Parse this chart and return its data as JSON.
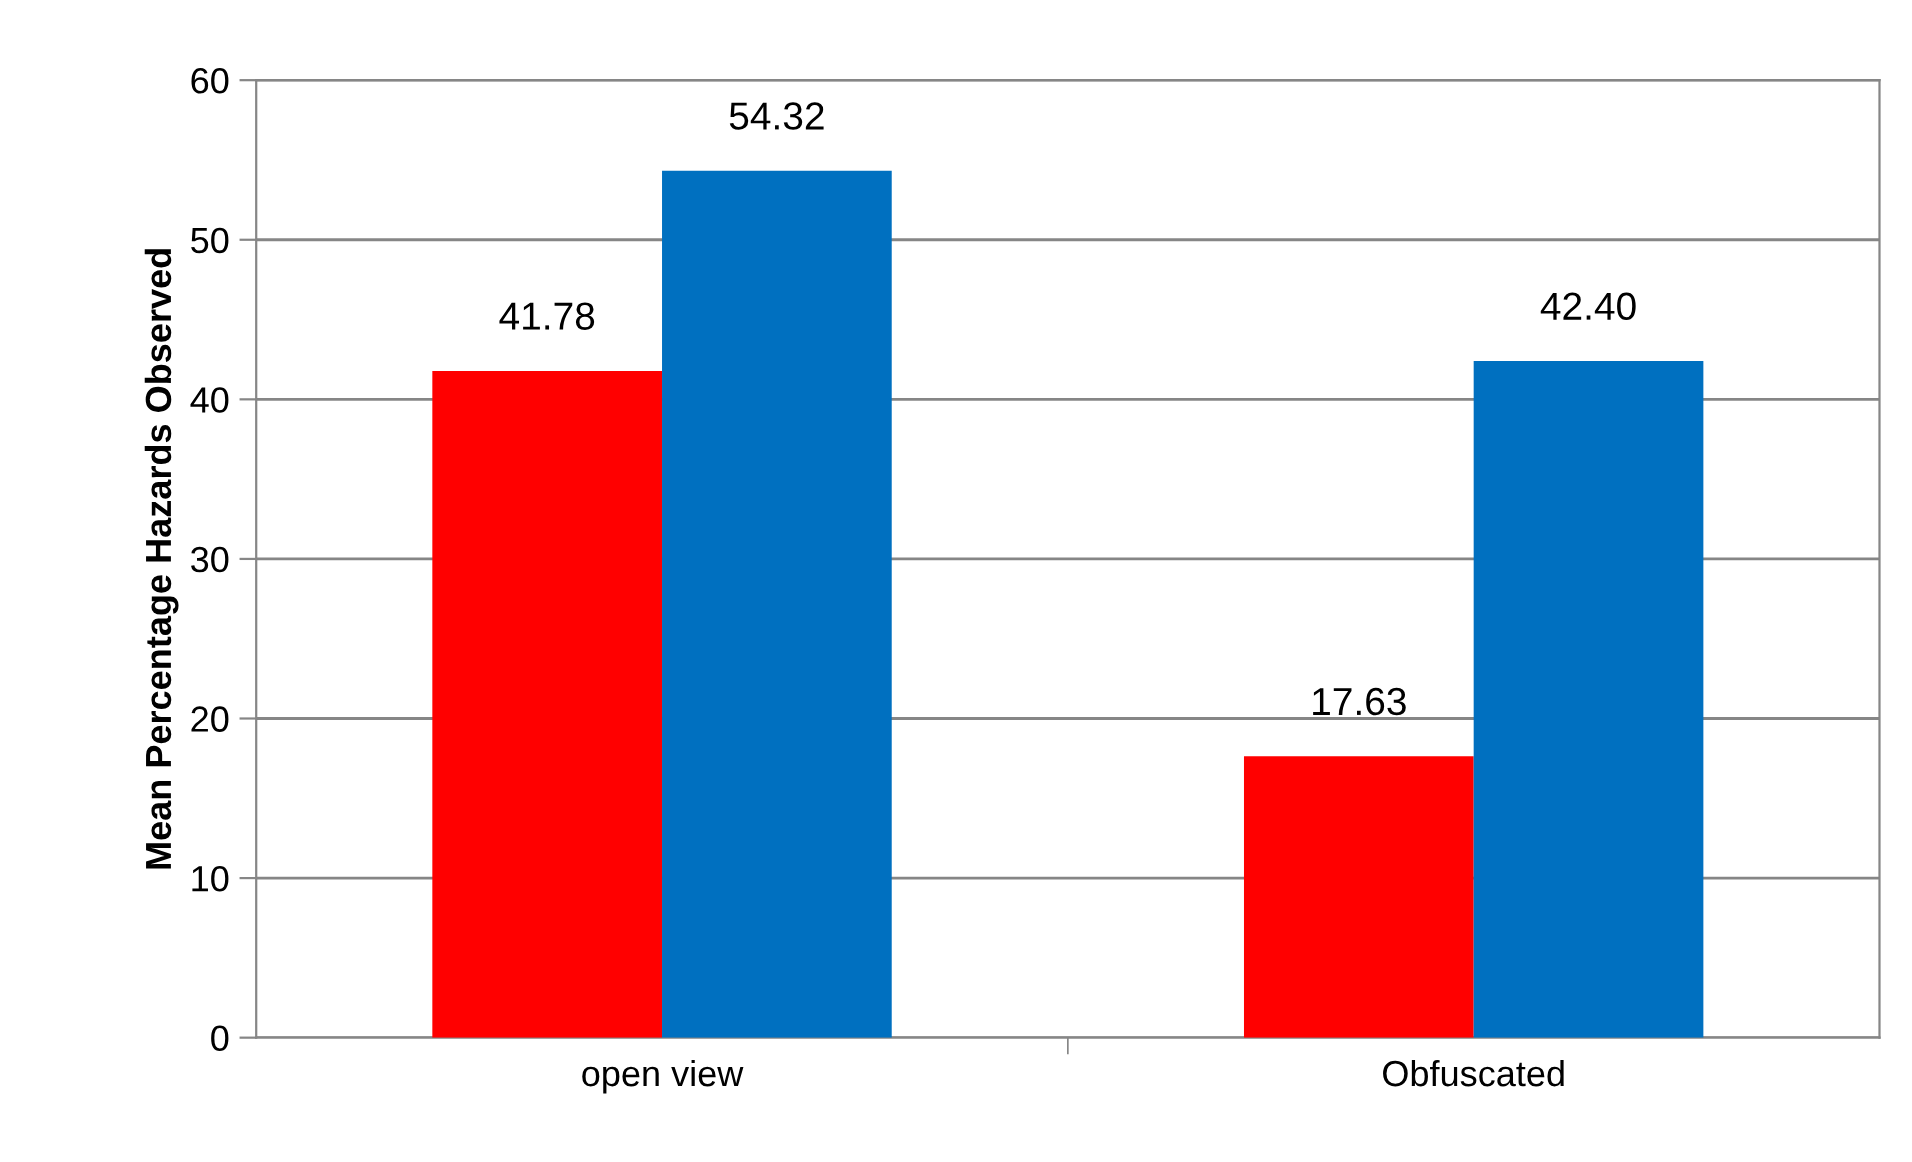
{
  "chart_data": {
    "type": "bar",
    "ylabel": "Mean Percentage Hazards Observed",
    "categories": [
      "open view",
      "Obfuscated"
    ],
    "series": [
      {
        "color": "#ff0000",
        "values": [
          41.78,
          17.63
        ],
        "value_labels": [
          "41.78",
          "17.63"
        ]
      },
      {
        "color": "#0070c0",
        "values": [
          54.32,
          42.4
        ],
        "value_labels": [
          "54.32",
          "42.40"
        ]
      }
    ],
    "ylim": [
      0,
      60
    ],
    "yticks": [
      0,
      10,
      20,
      30,
      40,
      50,
      60
    ],
    "grid": "y",
    "legend": false
  }
}
